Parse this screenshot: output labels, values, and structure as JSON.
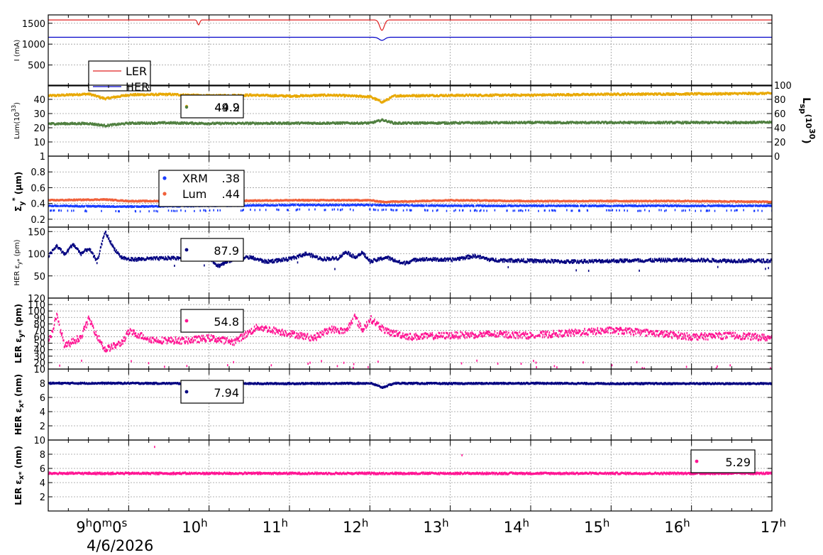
{
  "date_label": "4/6/2026",
  "chart_data": [
    {
      "type": "line",
      "panel": "beam-current",
      "ylabel": "I (mA)",
      "ylim": [
        0,
        1700
      ],
      "yticks": [
        500,
        1000,
        1500
      ],
      "legend": {
        "placement": "bottom-left",
        "entries": [
          "LER",
          "HER"
        ]
      },
      "series": [
        {
          "name": "LER",
          "color": "#e02020",
          "baseline": 1580,
          "dips": [
            {
              "t": 9.87,
              "depth": 120,
              "width": 0.02
            },
            {
              "t": 12.15,
              "depth": 250,
              "width": 0.04
            }
          ]
        },
        {
          "name": "HER",
          "color": "#0000c8",
          "baseline": 1165,
          "dips": [
            {
              "t": 12.15,
              "depth": 75,
              "width": 0.05
            }
          ]
        }
      ]
    },
    {
      "type": "scatter",
      "panel": "luminosity",
      "ylabel": "Lum(10^33)",
      "ylabel_right": "Lsp(10^30)",
      "ylim": [
        0,
        50
      ],
      "yticks": [
        10,
        20,
        30,
        40
      ],
      "ylim_right": [
        0,
        100
      ],
      "yticks_right": [
        0,
        20,
        40,
        60,
        80,
        100
      ],
      "legend": {
        "placement": "top-left",
        "values": [
          "49.2",
          "44.9"
        ]
      },
      "series": [
        {
          "color": "#e8a800",
          "points": [
            [
              8.0,
              42.5
            ],
            [
              8.5,
              43.8
            ],
            [
              8.7,
              40.5
            ],
            [
              9.0,
              43.2
            ],
            [
              9.5,
              43.5
            ],
            [
              10.0,
              42.5
            ],
            [
              10.5,
              43.0
            ],
            [
              11.0,
              42.3
            ],
            [
              11.5,
              43.0
            ],
            [
              12.0,
              41.8
            ],
            [
              12.15,
              38.0
            ],
            [
              12.3,
              42.5
            ],
            [
              13.0,
              42.8
            ],
            [
              14.0,
              43.0
            ],
            [
              15.0,
              43.6
            ],
            [
              16.0,
              43.8
            ],
            [
              17.0,
              44.2
            ]
          ]
        },
        {
          "color": "#4f7f3f",
          "points": [
            [
              8.0,
              22.8
            ],
            [
              8.5,
              23.0
            ],
            [
              8.7,
              21.5
            ],
            [
              9.0,
              23.2
            ],
            [
              9.5,
              23.4
            ],
            [
              10.0,
              23.0
            ],
            [
              11.0,
              23.2
            ],
            [
              12.0,
              23.3
            ],
            [
              12.15,
              25.5
            ],
            [
              12.3,
              23.2
            ],
            [
              13.0,
              23.4
            ],
            [
              14.0,
              23.6
            ],
            [
              15.0,
              23.6
            ],
            [
              16.0,
              23.6
            ],
            [
              17.0,
              23.8
            ]
          ]
        }
      ]
    },
    {
      "type": "scatter",
      "panel": "beam-size",
      "ylabel": "Σy* (μm)",
      "ylim": [
        0.1,
        1.0
      ],
      "yticks": [
        0.2,
        0.4,
        0.6,
        0.8,
        1
      ],
      "legend": {
        "placement": "top-left",
        "entries": [
          {
            "name": "XRM",
            "value": ".38"
          },
          {
            "name": "Lum",
            "value": ".44"
          }
        ]
      },
      "series": [
        {
          "name": "XRM",
          "color": "#1a3cff",
          "points": [
            [
              8.0,
              0.37
            ],
            [
              9.0,
              0.36
            ],
            [
              10.0,
              0.37
            ],
            [
              11.0,
              0.38
            ],
            [
              12.0,
              0.38
            ],
            [
              13.0,
              0.37
            ],
            [
              14.0,
              0.37
            ],
            [
              15.0,
              0.37
            ],
            [
              16.0,
              0.37
            ],
            [
              17.0,
              0.37
            ]
          ]
        },
        {
          "name": "Lum",
          "color": "#f0603a",
          "points": [
            [
              8.0,
              0.44
            ],
            [
              8.7,
              0.45
            ],
            [
              9.0,
              0.43
            ],
            [
              10.0,
              0.43
            ],
            [
              11.0,
              0.44
            ],
            [
              12.0,
              0.44
            ],
            [
              12.15,
              0.42
            ],
            [
              13.0,
              0.44
            ],
            [
              14.0,
              0.43
            ],
            [
              15.0,
              0.43
            ],
            [
              16.0,
              0.43
            ],
            [
              17.0,
              0.42
            ]
          ]
        }
      ]
    },
    {
      "type": "scatter",
      "panel": "her-emittance-y",
      "ylabel": "HER εy* (pm)",
      "ylim": [
        0,
        160
      ],
      "yticks": [
        50,
        100,
        150
      ],
      "legend": {
        "placement": "top-left",
        "value": "87.9"
      },
      "series": [
        {
          "color": "#000080",
          "points": [
            [
              8.0,
              95
            ],
            [
              8.1,
              118
            ],
            [
              8.2,
              98
            ],
            [
              8.3,
              122
            ],
            [
              8.4,
              100
            ],
            [
              8.5,
              112
            ],
            [
              8.6,
              82
            ],
            [
              8.7,
              150
            ],
            [
              8.8,
              115
            ],
            [
              8.9,
              92
            ],
            [
              9.0,
              87
            ],
            [
              9.5,
              90
            ],
            [
              10.0,
              92
            ],
            [
              10.1,
              72
            ],
            [
              10.3,
              88
            ],
            [
              10.5,
              92
            ],
            [
              10.7,
              82
            ],
            [
              11.0,
              88
            ],
            [
              11.2,
              100
            ],
            [
              11.4,
              88
            ],
            [
              11.6,
              90
            ],
            [
              11.7,
              105
            ],
            [
              11.8,
              92
            ],
            [
              11.9,
              102
            ],
            [
              12.0,
              82
            ],
            [
              12.2,
              92
            ],
            [
              12.4,
              78
            ],
            [
              12.6,
              88
            ],
            [
              13.0,
              86
            ],
            [
              13.3,
              95
            ],
            [
              13.5,
              86
            ],
            [
              14.0,
              84
            ],
            [
              14.5,
              82
            ],
            [
              15.0,
              84
            ],
            [
              15.5,
              85
            ],
            [
              16.0,
              86
            ],
            [
              16.5,
              84
            ],
            [
              17.0,
              84
            ]
          ]
        }
      ]
    },
    {
      "type": "scatter",
      "panel": "ler-emittance-y",
      "ylabel": "LER εy* (pm)",
      "ylim": [
        10,
        120
      ],
      "yticks": [
        10,
        20,
        30,
        40,
        50,
        60,
        70,
        80,
        90,
        100,
        110,
        120
      ],
      "legend": {
        "placement": "top-left",
        "value": "54.8"
      },
      "series": [
        {
          "color": "#ff1493",
          "points": [
            [
              8.0,
              52
            ],
            [
              8.1,
              92
            ],
            [
              8.2,
              45
            ],
            [
              8.4,
              60
            ],
            [
              8.5,
              88
            ],
            [
              8.6,
              62
            ],
            [
              8.7,
              40
            ],
            [
              8.9,
              50
            ],
            [
              9.0,
              68
            ],
            [
              9.3,
              55
            ],
            [
              9.7,
              54
            ],
            [
              10.0,
              58
            ],
            [
              10.3,
              52
            ],
            [
              10.6,
              75
            ],
            [
              11.0,
              65
            ],
            [
              11.3,
              58
            ],
            [
              11.5,
              72
            ],
            [
              11.7,
              68
            ],
            [
              11.8,
              92
            ],
            [
              11.9,
              70
            ],
            [
              12.0,
              88
            ],
            [
              12.2,
              68
            ],
            [
              12.5,
              60
            ],
            [
              13.0,
              62
            ],
            [
              13.5,
              64
            ],
            [
              14.0,
              62
            ],
            [
              14.5,
              66
            ],
            [
              15.0,
              70
            ],
            [
              15.5,
              66
            ],
            [
              16.0,
              60
            ],
            [
              16.5,
              62
            ],
            [
              17.0,
              58
            ]
          ]
        }
      ]
    },
    {
      "type": "scatter",
      "panel": "her-emittance-x",
      "ylabel": "HER εx* (nm)",
      "ylim": [
        0,
        10
      ],
      "yticks": [
        2,
        4,
        6,
        8
      ],
      "legend": {
        "placement": "top-left",
        "value": "7.94"
      },
      "series": [
        {
          "color": "#000080",
          "points": [
            [
              8.0,
              8.0
            ],
            [
              9.0,
              8.0
            ],
            [
              10.0,
              7.95
            ],
            [
              11.0,
              7.95
            ],
            [
              12.0,
              8.0
            ],
            [
              12.15,
              7.4
            ],
            [
              12.3,
              8.0
            ],
            [
              13.0,
              7.95
            ],
            [
              14.0,
              8.0
            ],
            [
              15.0,
              7.95
            ],
            [
              16.0,
              7.95
            ],
            [
              17.0,
              7.95
            ]
          ]
        }
      ]
    },
    {
      "type": "scatter",
      "panel": "ler-emittance-x",
      "ylabel": "LER εx* (nm)",
      "ylim": [
        0,
        10
      ],
      "yticks": [
        2,
        4,
        6,
        8,
        10
      ],
      "legend": {
        "placement": "top-right",
        "value": "5.29"
      },
      "series": [
        {
          "color": "#ff1493",
          "points": [
            [
              8.0,
              5.3
            ],
            [
              9.0,
              5.3
            ],
            [
              10.0,
              5.3
            ],
            [
              11.0,
              5.3
            ],
            [
              12.0,
              5.3
            ],
            [
              13.0,
              5.3
            ],
            [
              14.0,
              5.3
            ],
            [
              15.0,
              5.3
            ],
            [
              16.0,
              5.3
            ],
            [
              17.0,
              5.3
            ]
          ]
        }
      ]
    }
  ],
  "x_axis": {
    "range_hours": [
      8.0,
      17.0
    ],
    "ticks": [
      {
        "t": 9,
        "label": "9h0m0s"
      },
      {
        "t": 10,
        "label": "10h"
      },
      {
        "t": 11,
        "label": "11h"
      },
      {
        "t": 12,
        "label": "12h"
      },
      {
        "t": 13,
        "label": "13h"
      },
      {
        "t": 14,
        "label": "14h"
      },
      {
        "t": 15,
        "label": "15h"
      },
      {
        "t": 16,
        "label": "16h"
      },
      {
        "t": 17,
        "label": "17h"
      }
    ]
  }
}
